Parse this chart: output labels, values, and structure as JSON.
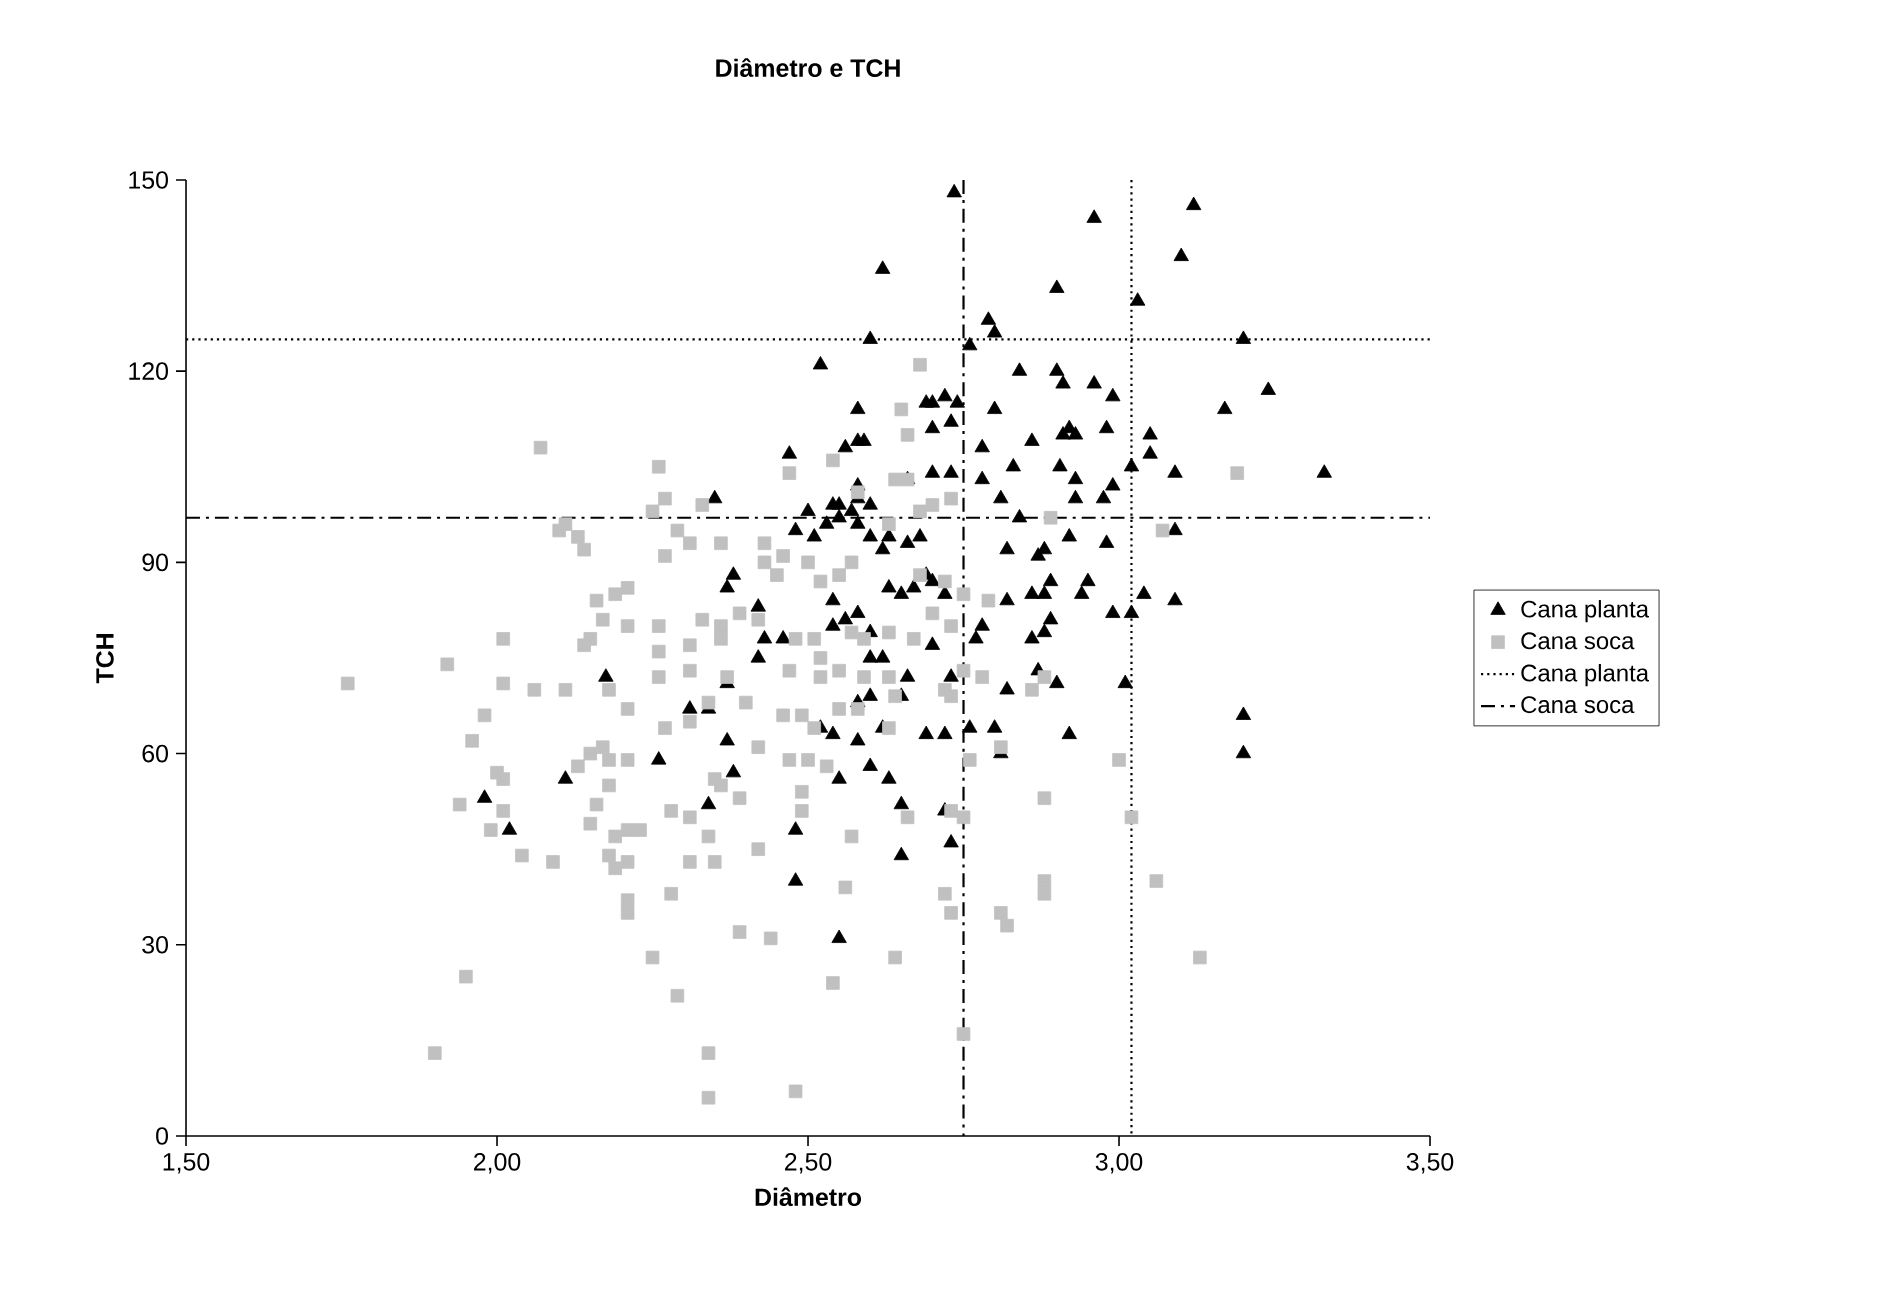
{
  "chart_data": {
    "type": "scatter",
    "title": "Diâmetro e TCH",
    "xlabel": "Diâmetro",
    "ylabel": "TCH",
    "xlim": [
      1.5,
      3.5
    ],
    "ylim": [
      0,
      150
    ],
    "xticks": [
      {
        "value": 1.5,
        "label": "1,50"
      },
      {
        "value": 2.0,
        "label": "2,00"
      },
      {
        "value": 2.5,
        "label": "2,50"
      },
      {
        "value": 3.0,
        "label": "3,00"
      },
      {
        "value": 3.5,
        "label": "3,50"
      }
    ],
    "yticks": [
      0,
      30,
      60,
      90,
      120,
      150
    ],
    "legend": "right",
    "series": [
      {
        "name": "Cana planta",
        "marker": "triangle",
        "color": "#000000",
        "x": [
          2.735,
          2.96,
          3.12,
          3.1,
          2.9,
          3.03,
          2.79,
          2.8,
          2.76,
          3.2,
          3.24,
          3.17,
          2.84,
          2.9,
          2.91,
          2.96,
          2.99,
          2.74,
          2.8,
          2.73,
          2.78,
          2.86,
          2.91,
          2.92,
          2.93,
          2.98,
          3.05,
          3.05,
          3.02,
          3.09,
          3.33,
          2.905,
          2.93,
          2.99,
          2.975,
          2.93,
          2.83,
          2.78,
          2.73,
          2.81,
          2.84,
          2.92,
          2.98,
          3.09,
          2.87,
          2.82,
          2.88,
          2.89,
          2.95,
          2.94,
          3.04,
          3.09,
          2.99,
          3.02,
          2.86,
          2.88,
          2.82,
          2.78,
          2.89,
          2.86,
          2.77,
          2.88,
          2.87,
          2.9,
          3.01,
          2.82,
          2.73,
          3.2,
          3.2,
          2.92,
          2.8,
          2.76,
          2.81,
          2.72,
          2.73,
          2.35,
          2.5,
          2.48,
          2.51,
          2.53,
          2.54,
          2.55,
          2.57,
          2.58,
          2.58,
          2.6,
          2.62,
          2.63,
          2.66,
          2.68,
          2.69,
          2.7,
          2.67,
          2.72,
          2.63,
          2.65,
          2.38,
          2.37,
          2.42,
          2.54,
          2.56,
          2.58,
          2.54,
          2.43,
          2.46,
          2.42,
          2.6,
          2.62,
          2.6,
          2.66,
          2.7,
          2.65,
          2.6,
          2.37,
          2.31,
          2.34,
          2.58,
          2.54,
          2.52,
          2.58,
          2.62,
          2.69,
          2.72,
          2.37,
          2.26,
          2.38,
          2.55,
          2.6,
          2.63,
          2.65,
          2.34,
          2.48,
          2.65,
          2.48,
          2.55,
          2.175,
          2.11,
          1.98,
          2.02,
          2.62,
          2.6,
          2.52,
          2.58,
          2.69,
          2.7,
          2.72,
          2.7,
          2.58,
          2.59,
          2.56,
          2.47,
          2.7,
          2.66,
          2.58,
          2.6,
          2.55
        ],
        "values": [
          148,
          144,
          146,
          138,
          133,
          131,
          128,
          126,
          124,
          125,
          117,
          114,
          120,
          120,
          118,
          118,
          116,
          115,
          114,
          112,
          108,
          109,
          110,
          111,
          110,
          111,
          110,
          107,
          105,
          104,
          104,
          105,
          103,
          102,
          100,
          100,
          105,
          103,
          104,
          100,
          97,
          94,
          93,
          95,
          91,
          92,
          92,
          87,
          87,
          85,
          85,
          84,
          82,
          82,
          85,
          85,
          84,
          80,
          81,
          78,
          78,
          79,
          73,
          71,
          71,
          70,
          72,
          66,
          60,
          63,
          64,
          64,
          60,
          51,
          46,
          100,
          98,
          95,
          94,
          96,
          99,
          97,
          98,
          100,
          96,
          94,
          92,
          94,
          93,
          94,
          88,
          87,
          86,
          85,
          86,
          85,
          88,
          86,
          83,
          84,
          81,
          82,
          80,
          78,
          78,
          75,
          75,
          75,
          79,
          72,
          77,
          69,
          69,
          71,
          67,
          67,
          68,
          63,
          64,
          62,
          64,
          63,
          63,
          62,
          59,
          57,
          56,
          58,
          56,
          52,
          52,
          48,
          44,
          40,
          31,
          72,
          56,
          53,
          48,
          136,
          125,
          121,
          114,
          115,
          115,
          116,
          111,
          109,
          109,
          108,
          107,
          104,
          103,
          102,
          99,
          99
        ]
      },
      {
        "name": "Cana soca",
        "marker": "square",
        "color": "#c0c0c0",
        "x": [
          1.76,
          1.92,
          2.01,
          2.01,
          2.06,
          2.11,
          1.98,
          1.96,
          2.0,
          2.01,
          1.94,
          2.01,
          1.99,
          2.04,
          2.09,
          2.15,
          2.16,
          2.13,
          2.15,
          2.17,
          2.18,
          2.18,
          2.19,
          2.18,
          2.19,
          2.21,
          1.95,
          1.9,
          2.1,
          2.11,
          2.13,
          2.14,
          2.19,
          2.16,
          2.17,
          2.15,
          2.14,
          2.18,
          2.07,
          2.27,
          2.25,
          2.33,
          2.29,
          2.27,
          2.31,
          2.36,
          2.43,
          2.46,
          2.5,
          2.43,
          2.45,
          2.52,
          2.55,
          2.57,
          2.63,
          2.64,
          2.68,
          2.7,
          2.68,
          2.75,
          2.7,
          2.21,
          2.21,
          2.26,
          2.33,
          2.39,
          2.42,
          2.36,
          2.26,
          2.31,
          2.36,
          2.48,
          2.51,
          2.57,
          2.59,
          2.63,
          2.67,
          2.26,
          2.31,
          2.37,
          2.4,
          2.47,
          2.52,
          2.52,
          2.55,
          2.59,
          2.63,
          2.64,
          2.72,
          2.75,
          2.21,
          2.27,
          2.31,
          2.34,
          2.46,
          2.49,
          2.51,
          2.55,
          2.58,
          2.63,
          2.35,
          2.36,
          2.42,
          2.47,
          2.5,
          2.53,
          2.49,
          2.21,
          2.28,
          2.31,
          2.34,
          2.21,
          2.23,
          2.39,
          2.49,
          2.42,
          2.57,
          2.66,
          2.73,
          2.21,
          2.31,
          2.35,
          2.21,
          2.28,
          2.56,
          2.72,
          2.81,
          2.39,
          2.44,
          2.25,
          2.64,
          2.54,
          2.29,
          2.75,
          2.34,
          2.34,
          2.48,
          2.68,
          2.65,
          2.66,
          2.54,
          2.47,
          2.66,
          2.58,
          2.26,
          3.19,
          3.07,
          2.89,
          2.73,
          2.72,
          2.79,
          2.73,
          2.78,
          2.88,
          2.86,
          2.73,
          2.81,
          2.76,
          3.0,
          2.88,
          3.02,
          2.75,
          2.88,
          2.88,
          3.06,
          2.73,
          2.82,
          3.13
        ],
        "values": [
          71,
          74,
          78,
          71,
          70,
          70,
          66,
          62,
          57,
          56,
          52,
          51,
          48,
          44,
          43,
          49,
          52,
          58,
          60,
          61,
          59,
          55,
          47,
          44,
          42,
          35,
          25,
          13,
          95,
          96,
          94,
          92,
          85,
          84,
          81,
          78,
          77,
          70,
          108,
          100,
          98,
          99,
          95,
          91,
          93,
          93,
          93,
          91,
          90,
          90,
          88,
          87,
          88,
          90,
          96,
          103,
          98,
          99,
          88,
          85,
          82,
          86,
          80,
          80,
          81,
          82,
          81,
          80,
          76,
          77,
          78,
          78,
          78,
          79,
          78,
          79,
          78,
          72,
          73,
          72,
          68,
          73,
          75,
          72,
          73,
          72,
          72,
          69,
          70,
          73,
          67,
          64,
          65,
          68,
          66,
          66,
          64,
          67,
          67,
          64,
          56,
          55,
          61,
          59,
          59,
          58,
          54,
          59,
          51,
          50,
          47,
          48,
          48,
          53,
          51,
          45,
          47,
          50,
          51,
          43,
          43,
          43,
          37,
          38,
          39,
          38,
          35,
          32,
          31,
          28,
          28,
          24,
          22,
          16,
          13,
          6,
          7,
          121,
          114,
          110,
          106,
          104,
          103,
          101,
          105,
          104,
          95,
          97,
          100,
          87,
          84,
          80,
          72,
          72,
          70,
          69,
          61,
          59,
          59,
          53,
          50,
          50,
          40,
          38,
          40,
          35,
          33,
          28
        ]
      },
      {
        "name": "Cana planta",
        "type": "line",
        "line_style": "dotted",
        "color": "#000000",
        "x": [
          1.5,
          3.5,
          null,
          3.02,
          3.02
        ],
        "values": [
          125,
          125,
          null,
          150,
          0
        ]
      },
      {
        "name": "Cana soca",
        "type": "line",
        "line_style": "dashdot",
        "color": "#000000",
        "x": [
          1.5,
          3.5,
          null,
          2.75,
          2.75
        ],
        "values": [
          97,
          97,
          null,
          150,
          0
        ]
      }
    ]
  }
}
